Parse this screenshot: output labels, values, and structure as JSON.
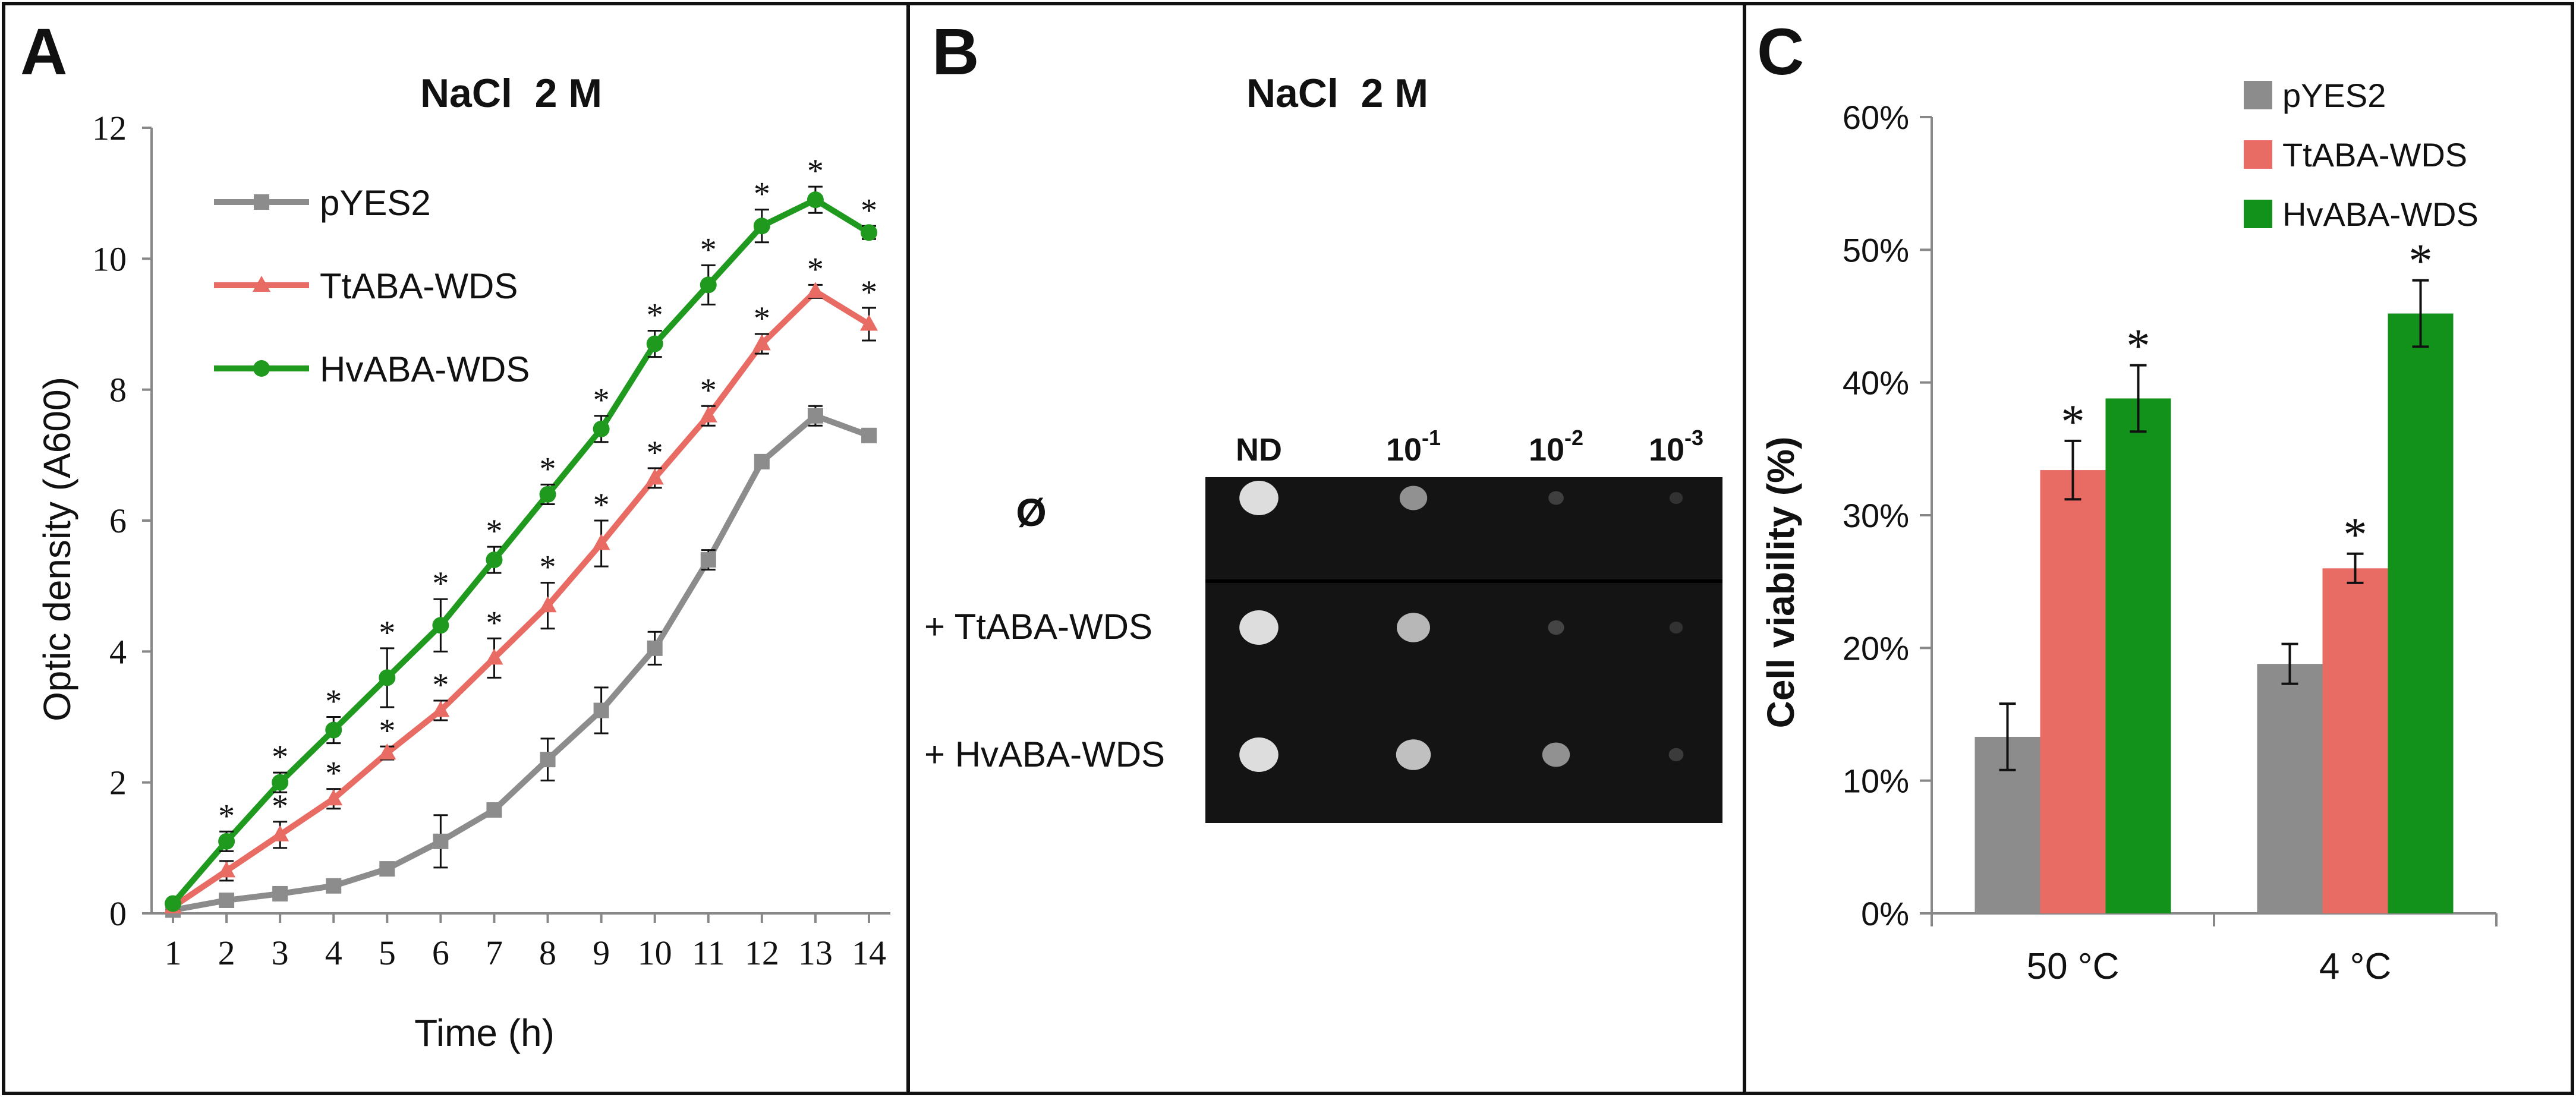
{
  "panels": {
    "A": {
      "letter": "A",
      "chart_data": {
        "type": "line",
        "title": "NaCl  2 M",
        "xlabel": "Time (h)",
        "ylabel": "Optic density (A600)",
        "x": [
          1,
          2,
          3,
          4,
          5,
          6,
          7,
          8,
          9,
          10,
          11,
          12,
          13,
          14
        ],
        "xlim": [
          0.6,
          14.4
        ],
        "ylim": [
          0,
          12
        ],
        "yticks": [
          0,
          2,
          4,
          6,
          8,
          10,
          12
        ],
        "legend_position": "top-left",
        "series": [
          {
            "name": "pYES2",
            "color": "#8c8c8c",
            "marker": "square",
            "values": [
              0.05,
              0.2,
              0.3,
              0.42,
              0.68,
              1.1,
              1.58,
              2.35,
              3.1,
              4.05,
              5.4,
              6.9,
              7.6,
              7.3
            ],
            "errors": [
              0.05,
              0.08,
              0.08,
              0.08,
              0.1,
              0.4,
              0.1,
              0.32,
              0.35,
              0.25,
              0.15,
              0.1,
              0.15,
              0.1
            ],
            "significance": [
              "",
              "",
              "",
              "",
              "",
              "",
              "",
              "",
              "",
              "",
              "",
              "",
              "",
              ""
            ]
          },
          {
            "name": "TtABA-WDS",
            "color": "#e86b64",
            "marker": "triangle",
            "values": [
              0.1,
              0.65,
              1.2,
              1.75,
              2.45,
              3.1,
              3.9,
              4.7,
              5.65,
              6.65,
              7.6,
              8.7,
              9.5,
              9.0
            ],
            "errors": [
              0.05,
              0.15,
              0.2,
              0.15,
              0.1,
              0.15,
              0.3,
              0.35,
              0.35,
              0.15,
              0.15,
              0.15,
              0.1,
              0.25
            ],
            "significance": [
              "",
              "*",
              "*",
              "*",
              "*",
              "*",
              "*",
              "*",
              "*",
              "*",
              "*",
              "*",
              "*",
              "*"
            ]
          },
          {
            "name": "HvABA-WDS",
            "color": "#1f9a1f",
            "marker": "circle",
            "values": [
              0.15,
              1.1,
              2.0,
              2.8,
              3.6,
              4.4,
              5.4,
              6.4,
              7.4,
              8.7,
              9.6,
              10.5,
              10.9,
              10.4
            ],
            "errors": [
              0.05,
              0.15,
              0.15,
              0.2,
              0.45,
              0.4,
              0.2,
              0.15,
              0.2,
              0.2,
              0.3,
              0.25,
              0.2,
              0.1
            ],
            "significance": [
              "",
              "*",
              "*",
              "*",
              "*",
              "*",
              "*",
              "*",
              "*",
              "*",
              "*",
              "*",
              "*",
              "*"
            ]
          }
        ]
      }
    },
    "B": {
      "letter": "B",
      "title": "NaCl  2 M",
      "columns": [
        {
          "base": "ND",
          "exp": ""
        },
        {
          "base": "10",
          "exp": "-1"
        },
        {
          "base": "10",
          "exp": "-2"
        },
        {
          "base": "10",
          "exp": "-3"
        }
      ],
      "rows": [
        "Ø",
        "+ TtABA-WDS",
        "+ HvABA-WDS"
      ],
      "spots": [
        [
          0.95,
          0.55,
          0.12,
          0.05
        ],
        [
          0.95,
          0.75,
          0.15,
          0.05
        ],
        [
          0.95,
          0.8,
          0.55,
          0.1
        ]
      ]
    },
    "C": {
      "letter": "C",
      "chart_data": {
        "type": "bar",
        "title": "",
        "xlabel": "",
        "ylabel": "Cell viability (%)",
        "categories": [
          "50 °C",
          "4 °C"
        ],
        "ylim": [
          0,
          60
        ],
        "yticks": [
          0,
          10,
          20,
          30,
          40,
          50,
          60
        ],
        "ytick_labels": [
          "0%",
          "10%",
          "20%",
          "30%",
          "40%",
          "50%",
          "60%"
        ],
        "legend_position": "top-right",
        "series": [
          {
            "name": "pYES2",
            "color": "#8c8c8c",
            "values": [
              13.3,
              18.8
            ],
            "errors": [
              2.5,
              1.5
            ],
            "significance": [
              "",
              ""
            ]
          },
          {
            "name": "TtABA-WDS",
            "color": "#e86b64",
            "values": [
              33.4,
              26.0
            ],
            "errors": [
              2.2,
              1.1
            ],
            "significance": [
              "*",
              "*"
            ]
          },
          {
            "name": "HvABA-WDS",
            "color": "#12921a",
            "values": [
              38.8,
              45.2
            ],
            "errors": [
              2.5,
              2.5
            ],
            "significance": [
              "*",
              "*"
            ]
          }
        ]
      }
    }
  }
}
